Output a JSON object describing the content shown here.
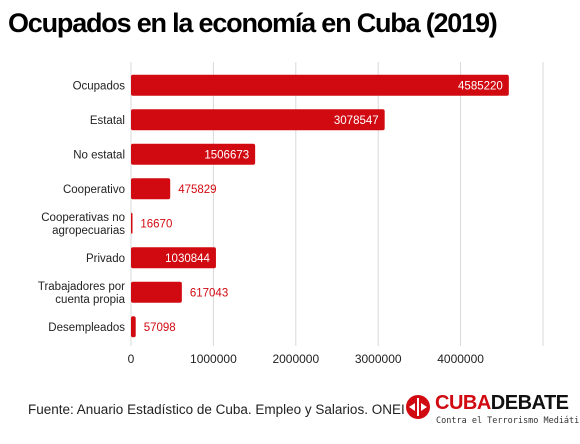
{
  "title": "Ocupados en la economía en Cuba (2019)",
  "footer": "Fuente: Anuario Estadístico de Cuba. Empleo y Salarios. ONEI",
  "logo": {
    "word_red": "CUBA",
    "word_black": "DEBATE",
    "tagline": "Contra el Terrorismo Mediático"
  },
  "colors": {
    "bar": "#d10a11",
    "grid": "#d9d9d9"
  },
  "chart_data": {
    "type": "bar",
    "orientation": "horizontal",
    "categories": [
      [
        "Ocupados"
      ],
      [
        "Estatal"
      ],
      [
        "No estatal"
      ],
      [
        "Cooperativo"
      ],
      [
        "Cooperativas no",
        "agropecuarias"
      ],
      [
        "Privado"
      ],
      [
        "Trabajadores por",
        "cuenta propia"
      ],
      [
        "Desempleados"
      ]
    ],
    "values": [
      4585220,
      3078547,
      1506673,
      475829,
      16670,
      1030844,
      617043,
      57098
    ],
    "xlim": [
      0,
      5000000
    ],
    "xticks": [
      0,
      1000000,
      2000000,
      3000000,
      4000000
    ],
    "grid": true
  }
}
